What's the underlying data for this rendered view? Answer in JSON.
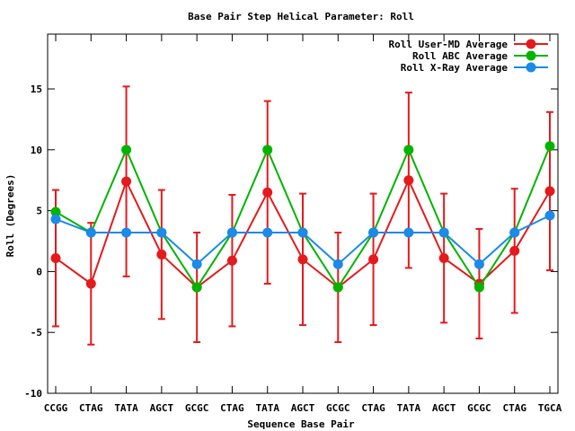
{
  "chart_data": {
    "type": "line",
    "title": "Base Pair Step Helical Parameter: Roll",
    "xlabel": "Sequence Base Pair",
    "ylabel": "Roll (Degrees)",
    "ylim": [
      -10,
      19.5
    ],
    "yticks": [
      -10,
      -5,
      0,
      5,
      10,
      15
    ],
    "grid": false,
    "legend": "top-right",
    "categories": [
      "CCGG",
      "CTAG",
      "TATA",
      "AGCT",
      "GCGC",
      "CTAG",
      "TATA",
      "AGCT",
      "GCGC",
      "CTAG",
      "TATA",
      "AGCT",
      "GCGC",
      "CTAG",
      "TGCA"
    ],
    "series": [
      {
        "name": "Roll User-MD Average",
        "color": "#e41a1c",
        "values": [
          1.1,
          -1.0,
          7.4,
          1.4,
          -1.3,
          0.9,
          6.5,
          1.0,
          -1.3,
          1.0,
          7.5,
          1.1,
          -1.0,
          1.7,
          6.6
        ],
        "error": [
          5.6,
          5.0,
          7.8,
          5.3,
          4.5,
          5.4,
          7.5,
          5.4,
          4.5,
          5.4,
          7.2,
          5.3,
          4.5,
          5.1,
          6.5
        ]
      },
      {
        "name": "Roll ABC Average",
        "color": "#00b400",
        "values": [
          4.9,
          3.2,
          10.0,
          3.2,
          -1.3,
          3.2,
          10.0,
          3.2,
          -1.3,
          3.2,
          10.0,
          3.2,
          -1.3,
          3.2,
          10.3
        ]
      },
      {
        "name": "Roll X-Ray Average",
        "color": "#1b8ae8",
        "values": [
          4.3,
          3.2,
          3.2,
          3.2,
          0.6,
          3.2,
          3.2,
          3.2,
          0.6,
          3.2,
          3.2,
          3.2,
          0.6,
          3.2,
          4.6
        ]
      }
    ]
  }
}
